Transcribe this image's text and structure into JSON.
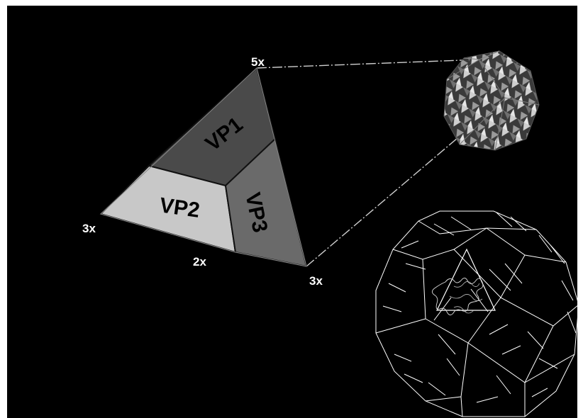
{
  "diagram": {
    "vertex_labels": {
      "top": "5x",
      "left": "3x",
      "right": "3x",
      "edge": "2x"
    },
    "regions": {
      "vp1": "VP1",
      "vp2": "VP2",
      "vp3": "VP3"
    }
  },
  "colors": {
    "background": "#000000",
    "vp1": "#4a4a4a",
    "vp2": "#c8c8c8",
    "vp3": "#6a6a6a",
    "outline": "#111111",
    "label_text": "#ffffff",
    "region_text": "#000000",
    "wireframe": "#ffffff"
  }
}
